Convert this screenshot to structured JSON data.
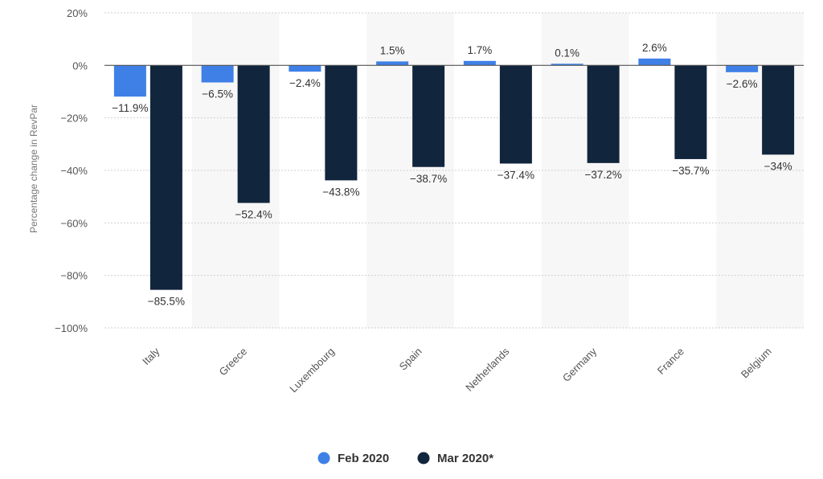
{
  "chart_data": {
    "type": "bar",
    "categories": [
      "Italy",
      "Greece",
      "Luxembourg",
      "Spain",
      "Netherlands",
      "Germany",
      "France",
      "Belgium"
    ],
    "series": [
      {
        "name": "Feb 2020",
        "color": "#3f80e6",
        "values": [
          -11.9,
          -6.5,
          -2.4,
          1.5,
          1.7,
          0.1,
          2.6,
          -2.6
        ],
        "labels": [
          "-11.9%",
          "-6.5%",
          "-2.4%",
          "1.5%",
          "1.7%",
          "0.1%",
          "2.6%",
          "-2.6%"
        ]
      },
      {
        "name": "Mar 2020*",
        "color": "#11253d",
        "values": [
          -85.5,
          -52.4,
          -43.8,
          -38.7,
          -37.4,
          -37.2,
          -35.7,
          -34
        ],
        "labels": [
          "-85.5%",
          "-52.4%",
          "-43.8%",
          "-38.7%",
          "-37.4%",
          "-37.2%",
          "-35.7%",
          "-34%"
        ]
      }
    ],
    "ylabel": "Percentage change in RevPar",
    "xlabel": "",
    "ylim": [
      -100,
      20
    ],
    "yticks": [
      20,
      0,
      -20,
      -40,
      -60,
      -80,
      -100
    ],
    "ytick_labels": [
      "20%",
      "0%",
      "-20%",
      "-40%",
      "-60%",
      "-80%",
      "-100%"
    ],
    "grid": true,
    "legend_position": "bottom-center"
  }
}
